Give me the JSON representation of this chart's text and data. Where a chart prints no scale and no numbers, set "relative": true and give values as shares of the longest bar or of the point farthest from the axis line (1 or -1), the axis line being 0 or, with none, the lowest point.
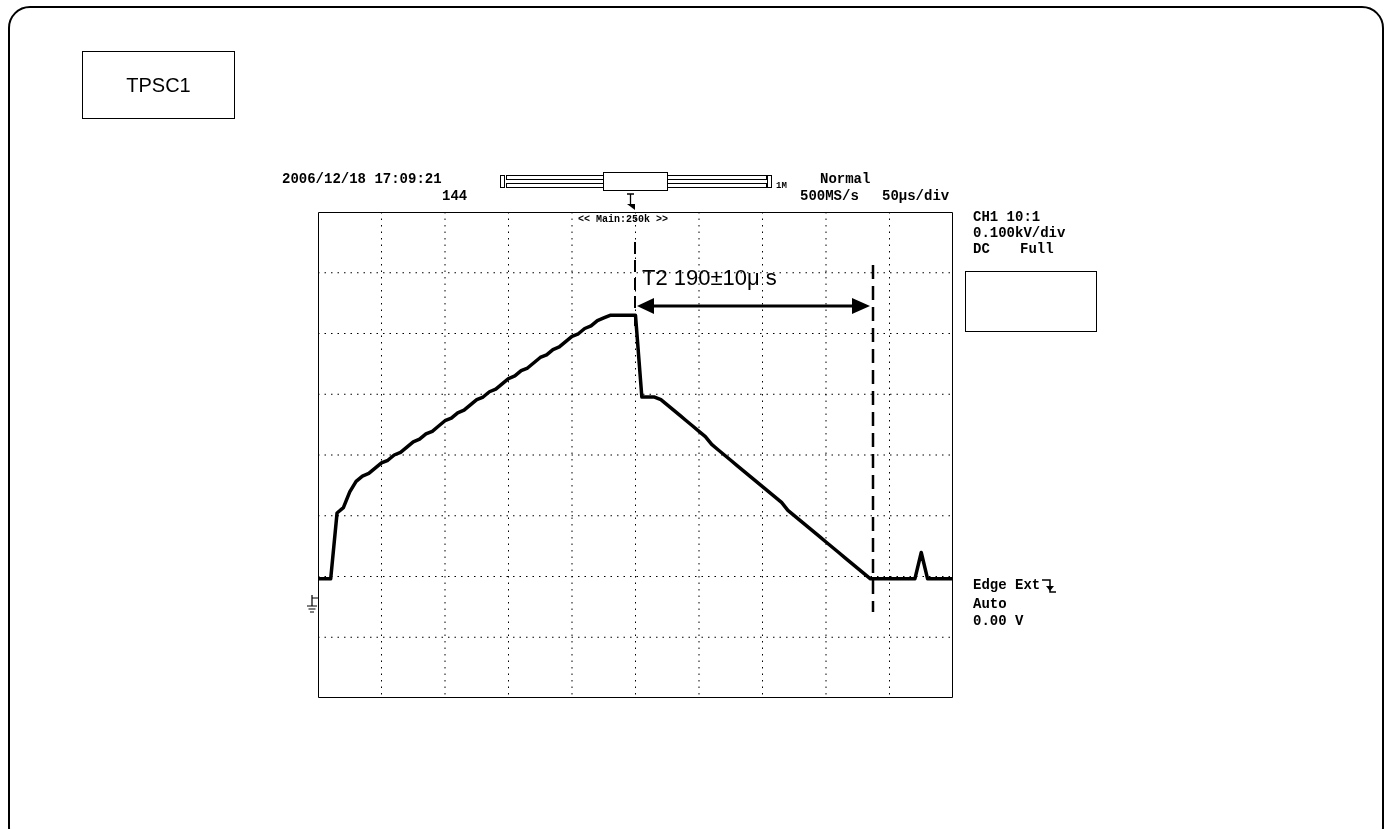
{
  "chart_data": {
    "type": "line",
    "title": "TPSC1",
    "relative": true,
    "grid": true,
    "legend": false,
    "marker": "none",
    "line_style": "solid",
    "categories": [
      null,
      null,
      null,
      null,
      null,
      null,
      null,
      null,
      null,
      null,
      null,
      null,
      null,
      null,
      null,
      null,
      null,
      null,
      null,
      null,
      null,
      null,
      null,
      null,
      null,
      null,
      null,
      null,
      null,
      null,
      null,
      null,
      null,
      null,
      null,
      null,
      null,
      null,
      null,
      null,
      null,
      null,
      null,
      null,
      null,
      null,
      null,
      null,
      null,
      null,
      null,
      null,
      null,
      null,
      null,
      null,
      null,
      null,
      null,
      null,
      null,
      null,
      null,
      null,
      null,
      null,
      null,
      null,
      null,
      null,
      null,
      null,
      null,
      null,
      null,
      null,
      null,
      null,
      null,
      null,
      null,
      null,
      null,
      null,
      null,
      null,
      null,
      null,
      null,
      null,
      null,
      null,
      null,
      null,
      null,
      null,
      null,
      null,
      null,
      null,
      null
    ],
    "series": [
      {
        "color": "#000000",
        "values": [
          0,
          0,
          0,
          0.25,
          0.27,
          0.33,
          0.37,
          0.39,
          0.4,
          0.42,
          0.44,
          0.45,
          0.47,
          0.48,
          0.5,
          0.52,
          0.53,
          0.55,
          0.56,
          0.58,
          0.6,
          0.61,
          0.63,
          0.64,
          0.66,
          0.68,
          0.69,
          0.71,
          0.72,
          0.74,
          0.76,
          0.77,
          0.79,
          0.8,
          0.82,
          0.84,
          0.85,
          0.87,
          0.88,
          0.9,
          0.92,
          0.93,
          0.95,
          0.96,
          0.98,
          0.99,
          1,
          1,
          1,
          1,
          1,
          0.69,
          0.69,
          0.69,
          0.68,
          0.66,
          0.64,
          0.62,
          0.6,
          0.58,
          0.56,
          0.54,
          0.51,
          0.49,
          0.47,
          0.45,
          0.43,
          0.41,
          0.39,
          0.37,
          0.35,
          0.33,
          0.31,
          0.29,
          0.26,
          0.24,
          0.22,
          0.2,
          0.18,
          0.16,
          0.14,
          0.12,
          0.1,
          0.08,
          0.06,
          0.04,
          0.02,
          0,
          0,
          0,
          0,
          0,
          0,
          0,
          0,
          0.1,
          0,
          0,
          0,
          0,
          0
        ]
      }
    ],
    "annotations": [
      "2006/12/18 17:09:21",
      "144",
      "Normal",
      "1M",
      "500MS/s",
      "50µs/div",
      "<< Main:250k >>",
      "CH1 10:1",
      "0.100kV/div",
      "DC",
      "Full",
      "Edge Ext",
      "Auto",
      "0.00 V",
      "T2 190±10μ s"
    ]
  }
}
